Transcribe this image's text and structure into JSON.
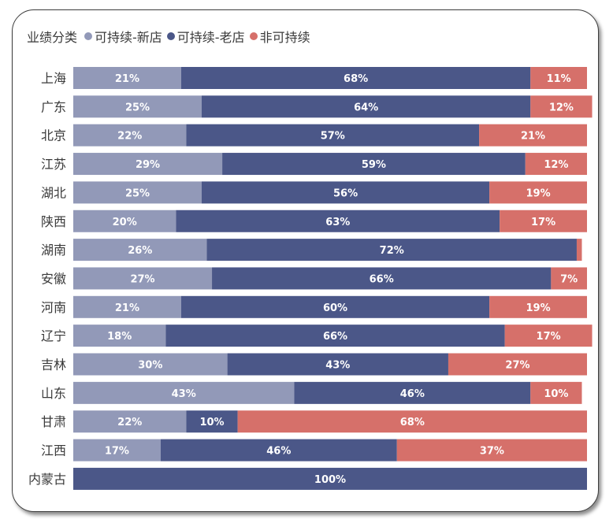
{
  "colors": {
    "new": "#9299b8",
    "old": "#4b5788",
    "non": "#d6706a"
  },
  "legend": {
    "title": "业绩分类",
    "items": [
      {
        "label": "可持续-新店",
        "color": "#9299b8"
      },
      {
        "label": "可持续-老店",
        "color": "#4b5788"
      },
      {
        "label": "非可持续",
        "color": "#d6706a"
      }
    ]
  },
  "chart_data": {
    "type": "bar",
    "orientation": "horizontal",
    "stacked": "100%",
    "categories": [
      "上海",
      "广东",
      "北京",
      "江苏",
      "湖北",
      "陕西",
      "湖南",
      "安徽",
      "河南",
      "辽宁",
      "吉林",
      "山东",
      "甘肃",
      "江西",
      "内蒙古"
    ],
    "series": [
      {
        "name": "可持续-新店",
        "values": [
          21,
          25,
          22,
          29,
          25,
          20,
          26,
          27,
          21,
          18,
          30,
          43,
          22,
          17,
          0
        ]
      },
      {
        "name": "可持续-老店",
        "values": [
          68,
          64,
          57,
          59,
          56,
          63,
          72,
          66,
          60,
          66,
          43,
          46,
          10,
          46,
          100
        ]
      },
      {
        "name": "非可持续",
        "values": [
          11,
          12,
          21,
          12,
          19,
          17,
          1,
          7,
          19,
          17,
          27,
          10,
          68,
          37,
          0
        ]
      }
    ],
    "data_labels": [
      [
        "21%",
        "68%",
        "11%"
      ],
      [
        "25%",
        "64%",
        "12%"
      ],
      [
        "22%",
        "57%",
        "21%"
      ],
      [
        "29%",
        "59%",
        "12%"
      ],
      [
        "25%",
        "56%",
        "19%"
      ],
      [
        "20%",
        "63%",
        "17%"
      ],
      [
        "26%",
        "72%",
        ""
      ],
      [
        "27%",
        "66%",
        "7%"
      ],
      [
        "21%",
        "60%",
        "19%"
      ],
      [
        "18%",
        "66%",
        "17%"
      ],
      [
        "30%",
        "43%",
        "27%"
      ],
      [
        "43%",
        "46%",
        "10%"
      ],
      [
        "22%",
        "10%",
        "68%"
      ],
      [
        "17%",
        "46%",
        "37%"
      ],
      [
        "",
        "100%",
        ""
      ]
    ],
    "xlim": [
      0,
      100
    ],
    "legend_position": "top-left",
    "grid": false
  }
}
